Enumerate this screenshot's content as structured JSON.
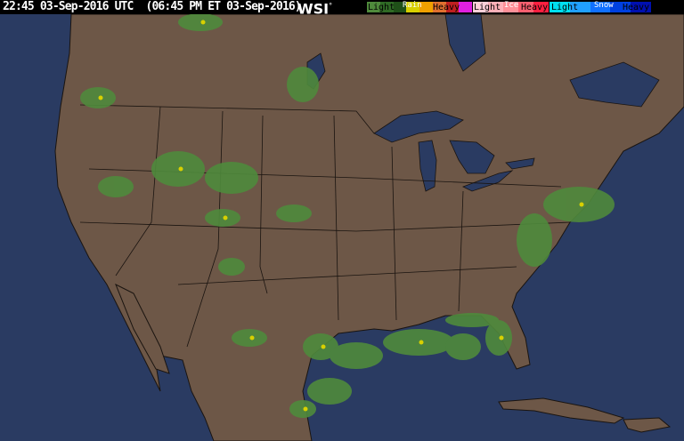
{
  "header": {
    "timestamp": "22:45 03-Sep-2016 UTC  (06:45 PM ET 03-Sep-2016)",
    "logo": "WSI",
    "logo_mark": "°"
  },
  "legend": {
    "rain": {
      "title": "Rain",
      "light": "Light",
      "heavy": "Heavy",
      "colors": [
        "#4f8a3c",
        "#2f6a25",
        "#1f5018",
        "#d8d000",
        "#f0a000",
        "#e07030",
        "#c02020",
        "#e020e0"
      ]
    },
    "ice": {
      "title": "Ice",
      "light": "Light",
      "heavy": "Heavy",
      "colors": [
        "#ffd0d8",
        "#ffb0b8",
        "#ff9098",
        "#ff6070",
        "#ff2040"
      ]
    },
    "snow": {
      "title": "Snow",
      "light": "Light",
      "heavy": "Heavy",
      "colors": [
        "#00e0f0",
        "#20a0ff",
        "#1070ff",
        "#0040e0",
        "#0010b0"
      ]
    }
  },
  "map": {
    "ocean_color": "#2a3b62",
    "land_color": "#6d5747",
    "lake_color": "#2a3b62",
    "border_color": "#1a1410",
    "precip_color": "#4f8a3c"
  }
}
